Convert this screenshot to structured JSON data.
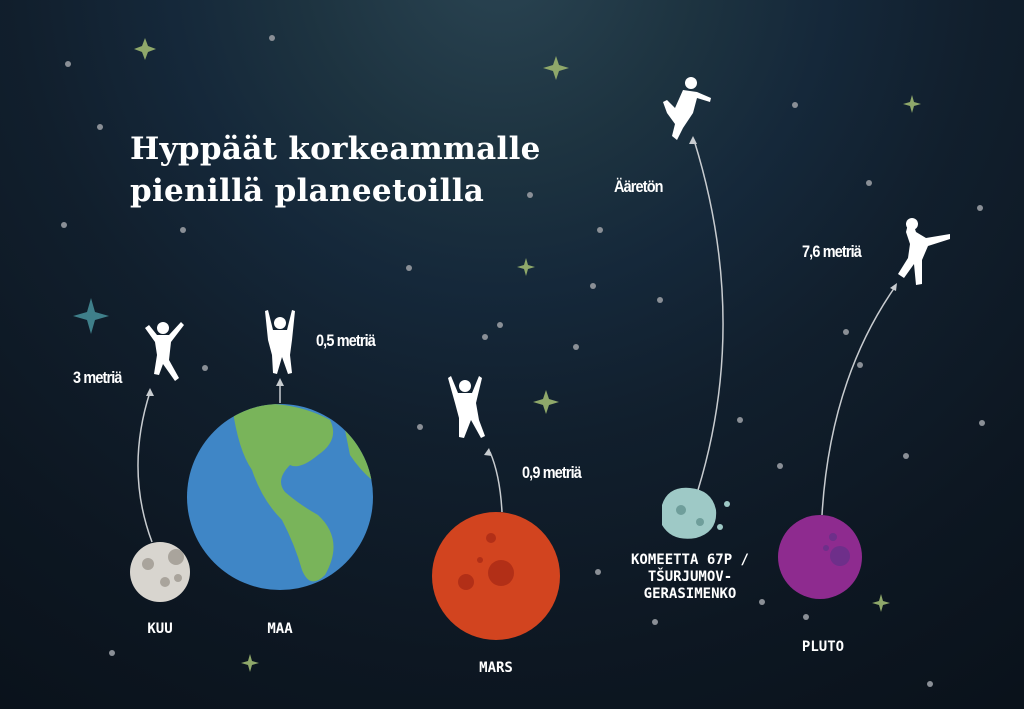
{
  "title": {
    "line1": "Hyppäät korkeammalle",
    "line2": "pienillä planeetoilla"
  },
  "bodies": [
    {
      "name": "KUU",
      "jump": "3 metriä",
      "color": "#d8d5cf"
    },
    {
      "name": "MAA",
      "jump": "0,5 metriä",
      "color": "#3f86c6",
      "land_color": "#79b45a"
    },
    {
      "name": "MARS",
      "jump": "0,9 metriä",
      "color": "#d2441f"
    },
    {
      "name": "KOMEETTA 67P / TŠURJUMOV-GERASIMENKO",
      "name_lines": [
        "KOMEETTA 67P /",
        "TŠURJUMOV-",
        "GERASIMENKO"
      ],
      "jump": "Ääretön",
      "color": "#9ec9c6"
    },
    {
      "name": "PLUTO",
      "jump": "7,6 metriä",
      "color": "#8e2b8f"
    }
  ],
  "colors": {
    "background": "#0e1822",
    "star_green": "#8fa86a",
    "star_teal": "#3f7f8a",
    "dot": "#8a8f96"
  }
}
